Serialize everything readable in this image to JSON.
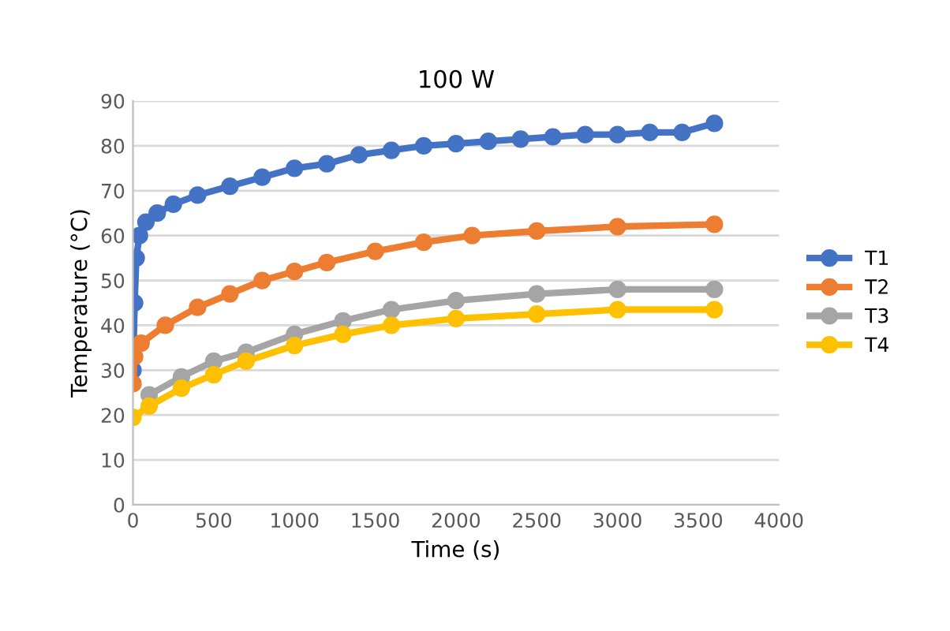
{
  "chart_data": {
    "type": "line",
    "title": "100 W",
    "xlabel": "Time (s)",
    "ylabel": "Temperature (°C)",
    "xlim": [
      0,
      4000
    ],
    "xticks": [
      0,
      500,
      1000,
      1500,
      2000,
      2500,
      3000,
      3500,
      4000
    ],
    "ylim": [
      0,
      90
    ],
    "yticks": [
      0,
      10,
      20,
      30,
      40,
      50,
      60,
      70,
      80,
      90
    ],
    "grid": "y",
    "legend": "right",
    "marker": "circle",
    "line_style": "solid",
    "series": [
      {
        "name": "T1",
        "color": "#4472c4",
        "x": [
          0,
          10,
          20,
          40,
          80,
          150,
          250,
          400,
          600,
          800,
          1000,
          1200,
          1400,
          1600,
          1800,
          2000,
          2200,
          2400,
          2600,
          2800,
          3000,
          3200,
          3400,
          3600
        ],
        "values": [
          30,
          45,
          55,
          60,
          63,
          65,
          67,
          69,
          71,
          73,
          75,
          76,
          78,
          79,
          80,
          80.5,
          81,
          81.5,
          82,
          82.5,
          82.5,
          83,
          83,
          85
        ]
      },
      {
        "name": "T2",
        "color": "#ed7d31",
        "x": [
          0,
          10,
          50,
          200,
          400,
          600,
          800,
          1000,
          1200,
          1500,
          1800,
          2100,
          2500,
          3000,
          3600
        ],
        "values": [
          27,
          33,
          36,
          40,
          44,
          47,
          50,
          52,
          54,
          56.5,
          58.5,
          60,
          61,
          62,
          62.5
        ]
      },
      {
        "name": "T3",
        "color": "#a5a5a5",
        "x": [
          100,
          300,
          500,
          700,
          1000,
          1300,
          1600,
          2000,
          2500,
          3000,
          3600
        ],
        "values": [
          24.5,
          28.5,
          32,
          34,
          38,
          41,
          43.5,
          45.5,
          47,
          48,
          48
        ]
      },
      {
        "name": "T4",
        "color": "#ffc000",
        "x": [
          0,
          100,
          300,
          500,
          700,
          1000,
          1300,
          1600,
          2000,
          2500,
          3000,
          3600
        ],
        "values": [
          19.5,
          22,
          26,
          29,
          32,
          35.5,
          38,
          40,
          41.5,
          42.5,
          43.5,
          43.5
        ]
      }
    ]
  }
}
